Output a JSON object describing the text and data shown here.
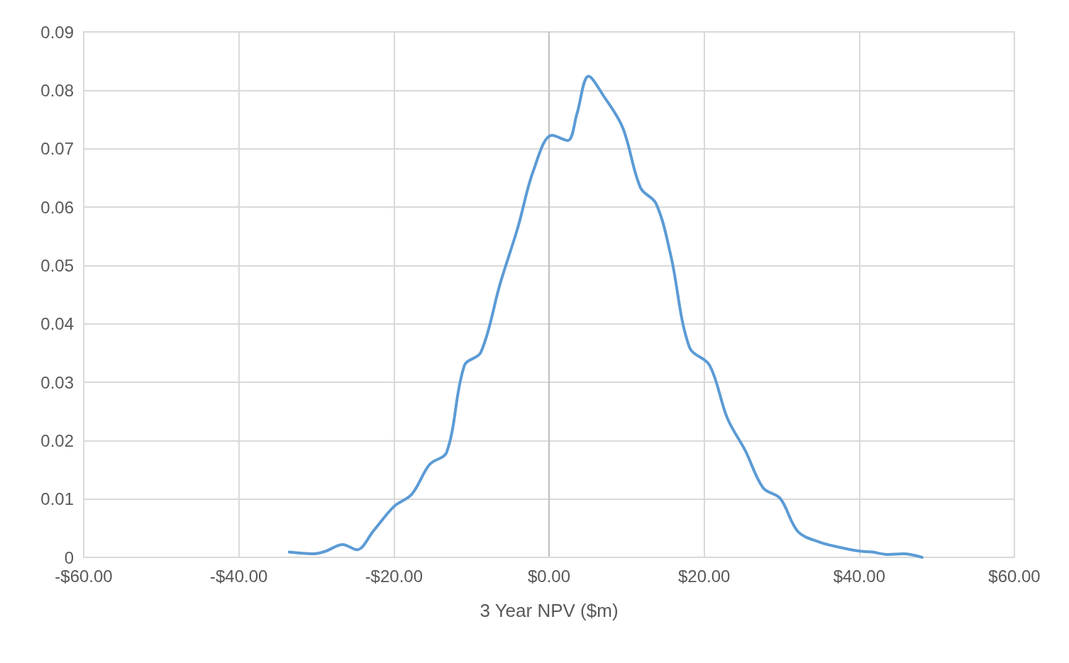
{
  "chart_data": {
    "type": "line",
    "xlabel": "3 Year NPV ($m)",
    "x": [
      -33.5,
      -30.5,
      -28.9,
      -26.6,
      -24.8,
      -22.6,
      -20.0,
      -17.7,
      -15.4,
      -13.2,
      -10.9,
      -8.8,
      -6.3,
      -4.0,
      -2.0,
      0.4,
      2.4,
      3.6,
      5.1,
      7.0,
      9.5,
      11.8,
      13.8,
      15.7,
      18.1,
      20.7,
      23.0,
      25.3,
      27.6,
      29.8,
      32.1,
      34.9,
      37.2,
      39.9,
      41.7,
      43.6,
      45.7,
      48.1
    ],
    "series": [
      {
        "color": "#5b9bd5",
        "values": [
          0.0009,
          0.0006,
          0.001,
          0.0022,
          0.0013,
          0.0046,
          0.0087,
          0.0108,
          0.0159,
          0.018,
          0.0329,
          0.0351,
          0.0469,
          0.0566,
          0.0663,
          0.0723,
          0.0714,
          0.076,
          0.0824,
          0.0791,
          0.0736,
          0.0633,
          0.0606,
          0.0517,
          0.036,
          0.0329,
          0.0238,
          0.0183,
          0.0119,
          0.0101,
          0.0044,
          0.0026,
          0.0018,
          0.0011,
          0.0009,
          0.0005,
          0.0006,
          0
        ]
      }
    ],
    "xlim": [
      -60,
      60
    ],
    "xticks": [
      {
        "value": -60,
        "label": "-$60.00"
      },
      {
        "value": -40,
        "label": "-$40.00"
      },
      {
        "value": -20,
        "label": "-$20.00"
      },
      {
        "value": 0,
        "label": "$0.00"
      },
      {
        "value": 20,
        "label": "$20.00"
      },
      {
        "value": 40,
        "label": "$40.00"
      },
      {
        "value": 60,
        "label": "$60.00"
      }
    ],
    "ylim": [
      0,
      0.09
    ],
    "yticks": [
      0,
      0.01,
      0.02,
      0.03,
      0.04,
      0.05,
      0.06,
      0.07,
      0.08,
      0.09
    ],
    "grid": true,
    "marker": "none",
    "line_style": "solid"
  }
}
